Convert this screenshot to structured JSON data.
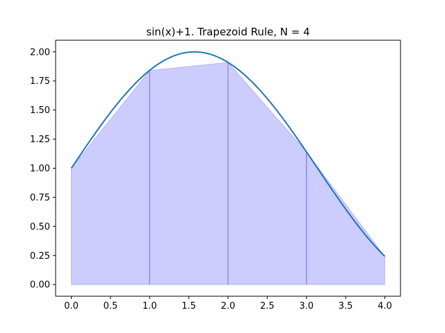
{
  "chart_data": {
    "type": "area",
    "title": "sin(x)+1. Trapezoid Rule, N = 4",
    "xlabel": "",
    "ylabel": "",
    "xlim": [
      -0.2,
      4.2
    ],
    "ylim": [
      -0.1,
      2.1
    ],
    "x_ticks": [
      "0.0",
      "0.5",
      "1.0",
      "1.5",
      "2.0",
      "2.5",
      "3.0",
      "3.5",
      "4.0"
    ],
    "y_ticks": [
      "0.00",
      "0.25",
      "0.50",
      "0.75",
      "1.00",
      "1.25",
      "1.50",
      "1.75",
      "2.00"
    ],
    "grid": false,
    "legend": "none",
    "curve": {
      "function": "sin(x)+1",
      "x_range": [
        0,
        4
      ],
      "color": "#1f77b4"
    },
    "trapezoids": {
      "x": [
        0,
        1,
        2,
        3,
        4
      ],
      "y": [
        1.0,
        1.84,
        1.91,
        1.14,
        0.24
      ],
      "fill_color": "#ccccff",
      "edge_color": "#8080ee"
    }
  }
}
